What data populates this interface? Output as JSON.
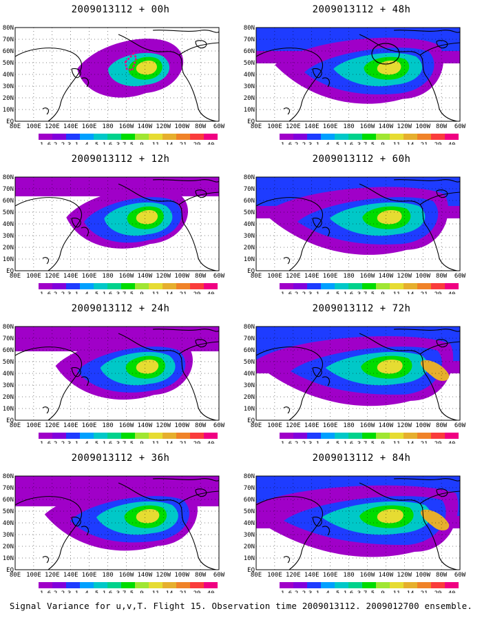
{
  "figure": {
    "caption": "Signal Variance for u,v,T. Flight 15. Observation time 2009013112. 2009012700 ensemble."
  },
  "lat_labels": [
    "80N",
    "70N",
    "60N",
    "50N",
    "40N",
    "30N",
    "20N",
    "10N",
    "EQ"
  ],
  "lon_labels": [
    "80E",
    "100E",
    "120E",
    "140E",
    "160E",
    "180",
    "160W",
    "140W",
    "120W",
    "100W",
    "80W",
    "60W"
  ],
  "colorbar": {
    "levels": [
      "1.6",
      "2.2",
      "3.1",
      "4",
      "5.1",
      "6.3",
      "7.5",
      "9",
      "11",
      "14",
      "21",
      "29",
      "40"
    ],
    "colors": [
      "#a000c8",
      "#8200dc",
      "#1e3cff",
      "#00a0ff",
      "#00c8c8",
      "#00d28c",
      "#00dc00",
      "#a0e632",
      "#e6dc32",
      "#e6af2d",
      "#f08228",
      "#fa3c3c",
      "#f00082"
    ]
  },
  "panels": [
    {
      "id": "p00",
      "title": "2009013112 + 00h",
      "level": 0,
      "track": true,
      "circle": false
    },
    {
      "id": "p48",
      "title": "2009013112 + 48h",
      "level": 4,
      "track": false,
      "circle": true
    },
    {
      "id": "p12",
      "title": "2009013112 + 12h",
      "level": 1,
      "track": false,
      "circle": false
    },
    {
      "id": "p60",
      "title": "2009013112 + 60h",
      "level": 5,
      "track": false,
      "circle": false
    },
    {
      "id": "p24",
      "title": "2009013112 + 24h",
      "level": 2,
      "track": false,
      "circle": false
    },
    {
      "id": "p72",
      "title": "2009013112 + 72h",
      "level": 6,
      "track": false,
      "circle": false
    },
    {
      "id": "p36",
      "title": "2009013112 + 36h",
      "level": 3,
      "track": false,
      "circle": false
    },
    {
      "id": "p84",
      "title": "2009013112 + 84h",
      "level": 7,
      "track": false,
      "circle": false
    }
  ]
}
